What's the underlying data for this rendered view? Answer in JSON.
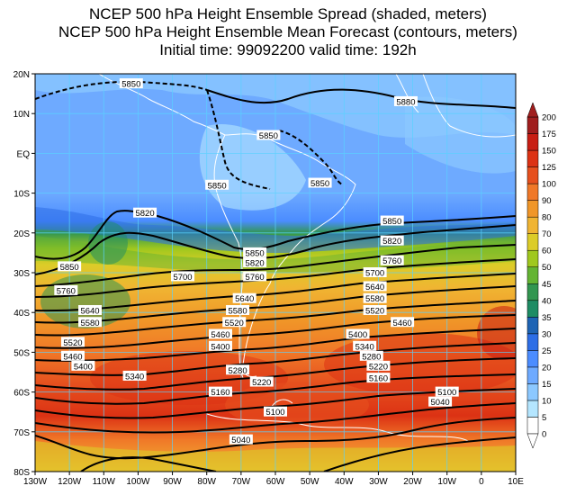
{
  "title": {
    "line1": "NCEP 500 hPa Height Ensemble Spread (shaded, meters)",
    "line2": "NCEP 500 hPa Height Ensemble Mean Forecast (contours, meters)",
    "line3": "Initial time: 99092200   valid time: 192h"
  },
  "map": {
    "lon_labels": [
      "130W",
      "120W",
      "110W",
      "100W",
      "90W",
      "80W",
      "70W",
      "60W",
      "50W",
      "40W",
      "30W",
      "20W",
      "10W",
      "0",
      "10E"
    ],
    "lat_labels": [
      "20N",
      "10N",
      "EQ",
      "10S",
      "20S",
      "30S",
      "40S",
      "50S",
      "60S",
      "70S",
      "80S"
    ]
  },
  "colorbar": {
    "levels": [
      "0",
      "5",
      "10",
      "15",
      "20",
      "25",
      "30",
      "35",
      "40",
      "45",
      "50",
      "60",
      "70",
      "80",
      "90",
      "100",
      "125",
      "150",
      "175",
      "200"
    ],
    "colors": [
      "#ffffff",
      "#b4e6ff",
      "#8cc8ff",
      "#6eaaff",
      "#4b8cff",
      "#2d6ee6",
      "#1e64b4",
      "#1e8c64",
      "#329650",
      "#64b432",
      "#a0c81e",
      "#dccc28",
      "#f0b432",
      "#f09628",
      "#f07828",
      "#e6501e",
      "#dc3214",
      "#c81e14",
      "#a01e1e"
    ]
  },
  "contour_labels": [
    {
      "text": "5850",
      "lon": -102,
      "lat": 17.5
    },
    {
      "text": "5880",
      "lon": -22,
      "lat": 13
    },
    {
      "text": "5850",
      "lon": -62,
      "lat": 4.5
    },
    {
      "text": "5850",
      "lon": -47,
      "lat": -7.5
    },
    {
      "text": "5850",
      "lon": -77,
      "lat": -8
    },
    {
      "text": "5820",
      "lon": -98,
      "lat": -15
    },
    {
      "text": "5850",
      "lon": -26,
      "lat": -17
    },
    {
      "text": "5820",
      "lon": -26,
      "lat": -22
    },
    {
      "text": "5760",
      "lon": -26,
      "lat": -27
    },
    {
      "text": "5850",
      "lon": -66,
      "lat": -25
    },
    {
      "text": "5820",
      "lon": -66,
      "lat": -27.5
    },
    {
      "text": "5850",
      "lon": -120,
      "lat": -28.5
    },
    {
      "text": "5760",
      "lon": -121,
      "lat": -34.5
    },
    {
      "text": "5700",
      "lon": -87,
      "lat": -31
    },
    {
      "text": "5760",
      "lon": -66,
      "lat": -31
    },
    {
      "text": "5700",
      "lon": -31,
      "lat": -30
    },
    {
      "text": "5640",
      "lon": -31,
      "lat": -33.5
    },
    {
      "text": "5580",
      "lon": -31,
      "lat": -36.5
    },
    {
      "text": "5640",
      "lon": -69,
      "lat": -36.5
    },
    {
      "text": "5580",
      "lon": -71,
      "lat": -39.5
    },
    {
      "text": "5520",
      "lon": -31,
      "lat": -39.5
    },
    {
      "text": "5460",
      "lon": -23,
      "lat": -42.5
    },
    {
      "text": "5640",
      "lon": -114,
      "lat": -39.5
    },
    {
      "text": "5580",
      "lon": -114,
      "lat": -42.5
    },
    {
      "text": "5520",
      "lon": -72,
      "lat": -42.5
    },
    {
      "text": "5460",
      "lon": -76,
      "lat": -45.5
    },
    {
      "text": "5400",
      "lon": -76,
      "lat": -48.5
    },
    {
      "text": "5400",
      "lon": -36,
      "lat": -45.5
    },
    {
      "text": "5340",
      "lon": -34,
      "lat": -48.5
    },
    {
      "text": "5280",
      "lon": -32,
      "lat": -51
    },
    {
      "text": "5220",
      "lon": -30,
      "lat": -53.5
    },
    {
      "text": "5160",
      "lon": -30,
      "lat": -56.5
    },
    {
      "text": "5520",
      "lon": -119,
      "lat": -47.5
    },
    {
      "text": "5460",
      "lon": -119,
      "lat": -51
    },
    {
      "text": "5400",
      "lon": -116,
      "lat": -53.5
    },
    {
      "text": "5340",
      "lon": -101,
      "lat": -56
    },
    {
      "text": "5280",
      "lon": -71,
      "lat": -54.5
    },
    {
      "text": "5220",
      "lon": -64,
      "lat": -57.5
    },
    {
      "text": "5160",
      "lon": -76,
      "lat": -60
    },
    {
      "text": "5100",
      "lon": -10,
      "lat": -60
    },
    {
      "text": "5040",
      "lon": -12,
      "lat": -62.5
    },
    {
      "text": "5100",
      "lon": -60,
      "lat": -65
    },
    {
      "text": "5040",
      "lon": -70,
      "lat": -72
    }
  ]
}
